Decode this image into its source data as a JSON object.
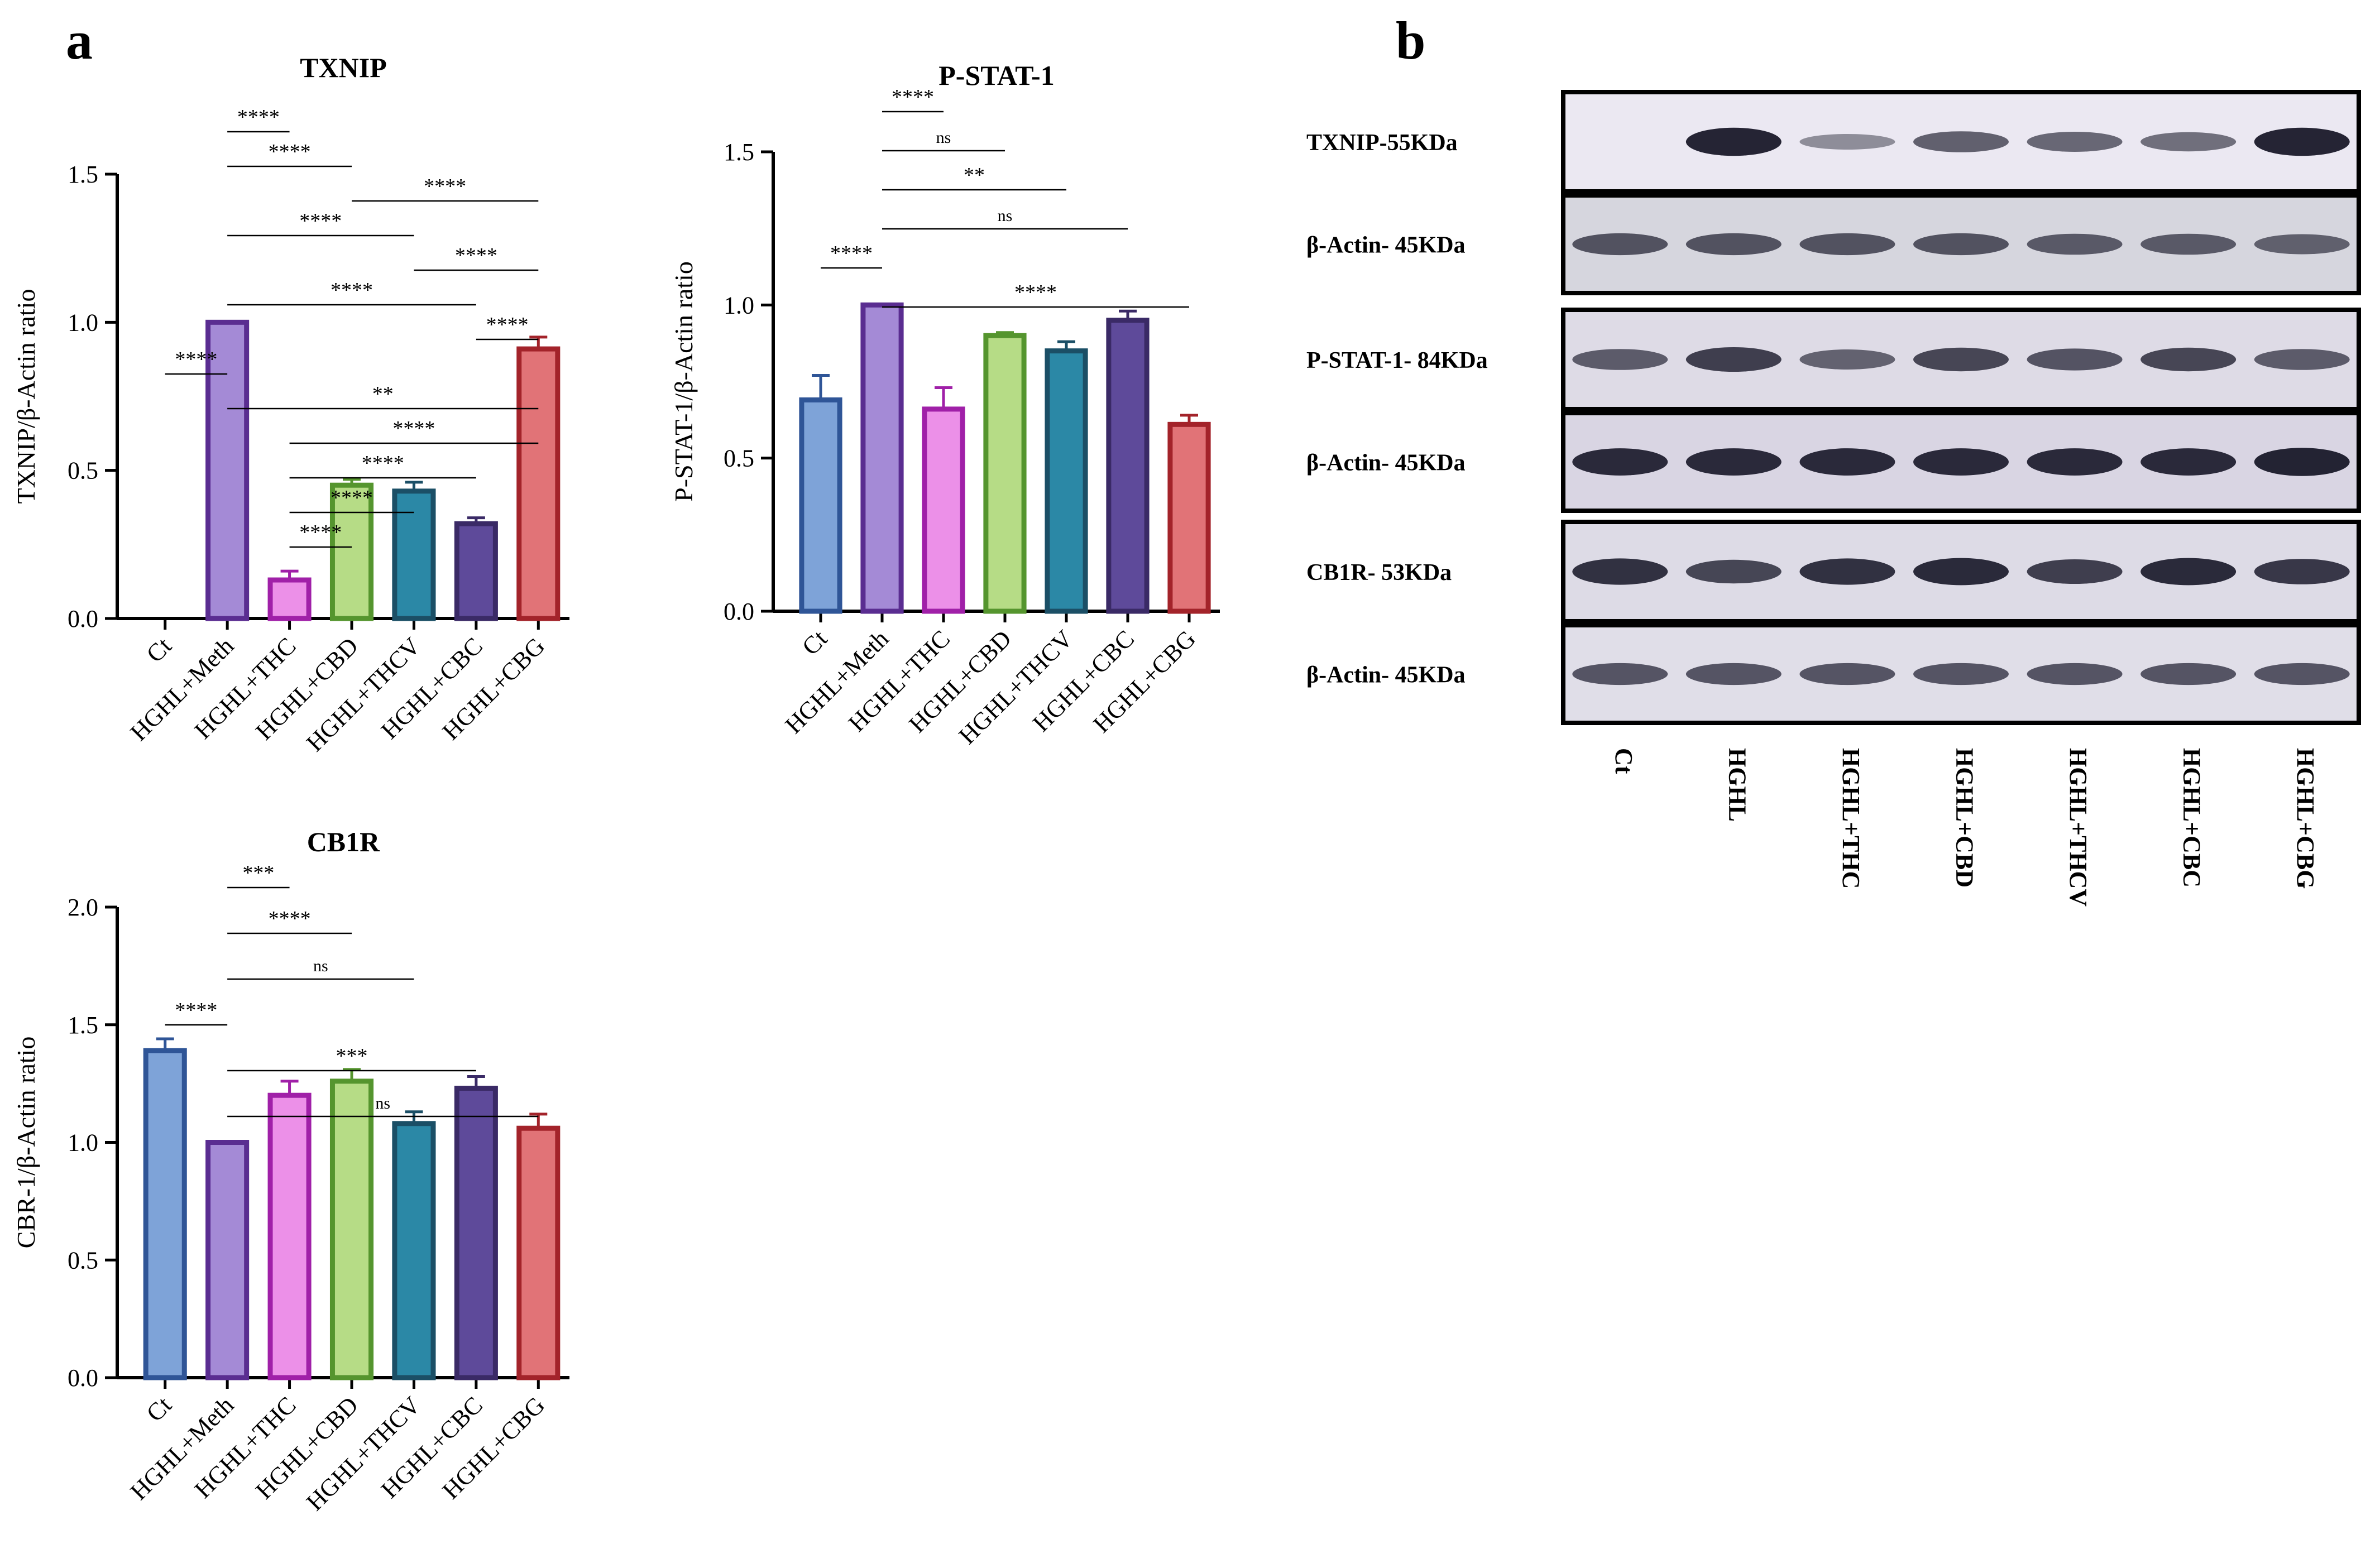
{
  "panels": {
    "a": "a",
    "b": "b"
  },
  "chart_data": [
    {
      "id": "txnip",
      "type": "bar",
      "title": "TXNIP",
      "ylabel": "TXNIP/β-Actin ratio",
      "categories": [
        "Ct",
        "HGHL+Meth",
        "HGHL+THC",
        "HGHL+CBD",
        "HGHL+THCV",
        "HGHL+CBC",
        "HGHL+CBG"
      ],
      "values": [
        0,
        1.0,
        0.13,
        0.45,
        0.43,
        0.32,
        0.91
      ],
      "errors": [
        0,
        0,
        0.03,
        0.02,
        0.03,
        0.02,
        0.04
      ],
      "ylim": [
        0,
        1.5
      ],
      "yticks": [
        0.0,
        0.5,
        1.0,
        1.5
      ],
      "ytick_labels": [
        "0.0",
        "0.5",
        "1.0",
        "1.5"
      ],
      "significance": [
        {
          "from": 1,
          "to": 2,
          "label": "****"
        },
        {
          "from": 1,
          "to": 3,
          "label": "****"
        },
        {
          "from": 3,
          "to": 6,
          "label": "****"
        },
        {
          "from": 1,
          "to": 4,
          "label": "****"
        },
        {
          "from": 4,
          "to": 6,
          "label": "****"
        },
        {
          "from": 1,
          "to": 5,
          "label": "****"
        },
        {
          "from": 5,
          "to": 6,
          "label": "****"
        },
        {
          "from": 0,
          "to": 1,
          "label": "****"
        },
        {
          "from": 1,
          "to": 6,
          "label": "**"
        },
        {
          "from": 2,
          "to": 6,
          "label": "****"
        },
        {
          "from": 2,
          "to": 5,
          "label": "****"
        },
        {
          "from": 2,
          "to": 4,
          "label": "****"
        },
        {
          "from": 2,
          "to": 3,
          "label": "****"
        }
      ]
    },
    {
      "id": "pstat1",
      "type": "bar",
      "title": "P-STAT-1",
      "ylabel": "P-STAT-1/β-Actin ratio",
      "categories": [
        "Ct",
        "HGHL+Meth",
        "HGHL+THC",
        "HGHL+CBD",
        "HGHL+THCV",
        "HGHL+CBC",
        "HGHL+CBG"
      ],
      "values": [
        0.69,
        1.0,
        0.66,
        0.9,
        0.85,
        0.95,
        0.61
      ],
      "errors": [
        0.08,
        0,
        0.07,
        0.01,
        0.03,
        0.03,
        0.03
      ],
      "ylim": [
        0,
        1.5
      ],
      "yticks": [
        0.0,
        0.5,
        1.0,
        1.5
      ],
      "ytick_labels": [
        "0.0",
        "0.5",
        "1.0",
        "1.5"
      ],
      "significance": [
        {
          "from": 1,
          "to": 2,
          "label": "****"
        },
        {
          "from": 1,
          "to": 3,
          "label": "ns"
        },
        {
          "from": 1,
          "to": 4,
          "label": "**"
        },
        {
          "from": 1,
          "to": 5,
          "label": "ns"
        },
        {
          "from": 0,
          "to": 1,
          "label": "****"
        },
        {
          "from": 1,
          "to": 6,
          "label": "****"
        }
      ]
    },
    {
      "id": "cb1r",
      "type": "bar",
      "title": "CB1R",
      "ylabel": "CBR-1/β-Actin ratio",
      "categories": [
        "Ct",
        "HGHL+Meth",
        "HGHL+THC",
        "HGHL+CBD",
        "HGHL+THCV",
        "HGHL+CBC",
        "HGHL+CBG"
      ],
      "values": [
        1.39,
        1.0,
        1.2,
        1.26,
        1.08,
        1.23,
        1.06
      ],
      "errors": [
        0.05,
        0,
        0.06,
        0.05,
        0.05,
        0.05,
        0.06
      ],
      "ylim": [
        0,
        2.0
      ],
      "yticks": [
        0.0,
        0.5,
        1.0,
        1.5,
        2.0
      ],
      "ytick_labels": [
        "0.0",
        "0.5",
        "1.0",
        "1.5",
        "2.0"
      ],
      "significance": [
        {
          "from": 1,
          "to": 2,
          "label": "***"
        },
        {
          "from": 1,
          "to": 3,
          "label": "****"
        },
        {
          "from": 1,
          "to": 4,
          "label": "ns"
        },
        {
          "from": 0,
          "to": 1,
          "label": "****"
        },
        {
          "from": 1,
          "to": 5,
          "label": "***"
        },
        {
          "from": 1,
          "to": 6,
          "label": "ns"
        }
      ]
    }
  ],
  "bar_colors": [
    {
      "fill": "#7ea3d8",
      "stroke": "#2f5597"
    },
    {
      "fill": "#a48ad6",
      "stroke": "#5a2d91"
    },
    {
      "fill": "#ec90e8",
      "stroke": "#a020a8"
    },
    {
      "fill": "#b6dc86",
      "stroke": "#55952e"
    },
    {
      "fill": "#2b88a6",
      "stroke": "#1b4f66"
    },
    {
      "fill": "#5e4a9a",
      "stroke": "#3a2a66"
    },
    {
      "fill": "#e17377",
      "stroke": "#a3232a"
    }
  ],
  "blot": {
    "lanes": [
      "Ct",
      "HGHL",
      "HGHL+THC",
      "HGHL+CBD",
      "HGHL+THCV",
      "HGHL+CBC",
      "HGHL+CBG"
    ],
    "rows": [
      {
        "label": "TXNIP-55KDa",
        "intensity": [
          0.0,
          0.95,
          0.25,
          0.55,
          0.5,
          0.45,
          0.95
        ],
        "shade": "#ebe8f2",
        "box": "#000000"
      },
      {
        "label": "β-Actin- 45KDa",
        "intensity": [
          0.6,
          0.6,
          0.6,
          0.6,
          0.55,
          0.55,
          0.5
        ],
        "shade": "#d6d6de",
        "box": "#000000"
      },
      {
        "label": "P-STAT-1- 84KDa",
        "intensity": [
          0.55,
          0.75,
          0.5,
          0.7,
          0.6,
          0.7,
          0.55
        ],
        "shade": "#dedbe6",
        "box": "#000000"
      },
      {
        "label": "β-Actin- 45KDa",
        "intensity": [
          0.9,
          0.9,
          0.9,
          0.9,
          0.9,
          0.9,
          0.95
        ],
        "shade": "#d9d5e3",
        "box": "#000000"
      },
      {
        "label": "CB1R- 53KDa",
        "intensity": [
          0.85,
          0.7,
          0.85,
          0.9,
          0.75,
          0.9,
          0.8
        ],
        "shade": "#dddbe6",
        "box": "#000000"
      },
      {
        "label": "β-Actin- 45KDa",
        "intensity": [
          0.6,
          0.6,
          0.6,
          0.6,
          0.6,
          0.6,
          0.6
        ],
        "shade": "#e0dee8",
        "box": "#000000"
      }
    ]
  }
}
